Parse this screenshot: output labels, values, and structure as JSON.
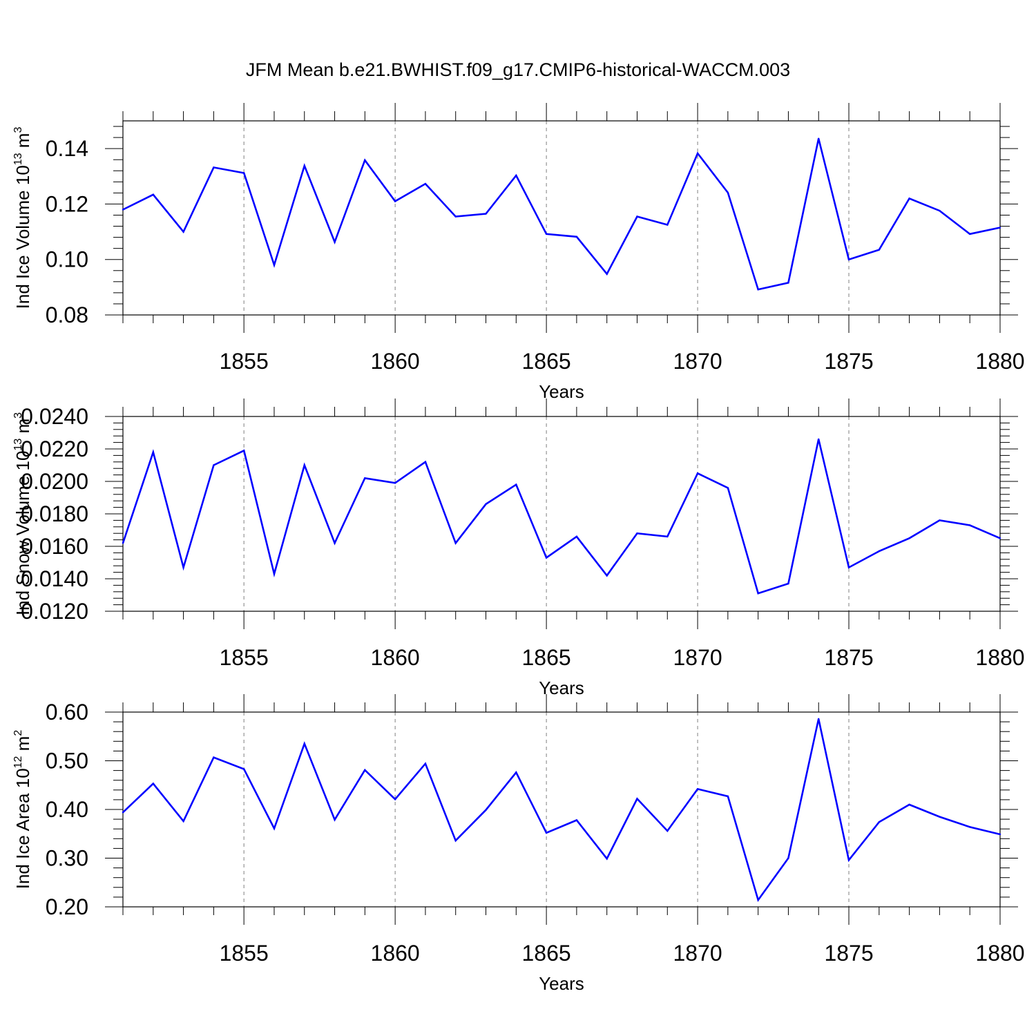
{
  "title": "JFM Mean b.e21.BWHIST.f09_g17.CMIP6-historical-WACCM.003",
  "line_color": "#0000ff",
  "chart_data": [
    {
      "type": "line",
      "ylabel": "Ind Ice Volume 10",
      "ylabel_exp": "13",
      "ylabel_unit": " m",
      "ylabel_unit_exp": "3",
      "xlabel": "Years",
      "xlim": [
        1851,
        1880
      ],
      "ylim": [
        0.08,
        0.15
      ],
      "yticks": [
        0.08,
        0.1,
        0.12,
        0.14
      ],
      "ytick_labels": [
        "0.08",
        "0.10",
        "0.12",
        "0.14"
      ],
      "xticks": [
        1855,
        1860,
        1865,
        1870,
        1875,
        1880
      ],
      "xtick_labels": [
        "1855",
        "1860",
        "1865",
        "1870",
        "1875",
        "1880"
      ],
      "x": [
        1851,
        1852,
        1853,
        1854,
        1855,
        1856,
        1857,
        1858,
        1859,
        1860,
        1861,
        1862,
        1863,
        1864,
        1865,
        1866,
        1867,
        1868,
        1869,
        1870,
        1871,
        1872,
        1873,
        1874,
        1875,
        1876,
        1877,
        1878,
        1879,
        1880
      ],
      "values": [
        0.118,
        0.1234,
        0.11,
        0.1332,
        0.1312,
        0.098,
        0.1338,
        0.1063,
        0.1358,
        0.121,
        0.1273,
        0.1155,
        0.1165,
        0.1303,
        0.1092,
        0.1082,
        0.0948,
        0.1155,
        0.1125,
        0.1383,
        0.1241,
        0.0892,
        0.0916,
        0.1436,
        0.1,
        0.1035,
        0.122,
        0.1176,
        0.1092,
        0.1115
      ]
    },
    {
      "type": "line",
      "ylabel": "Ind Snow Volume 10",
      "ylabel_exp": "13",
      "ylabel_unit": " m",
      "ylabel_unit_exp": "3",
      "xlabel": "Years",
      "xlim": [
        1851,
        1880
      ],
      "ylim": [
        0.012,
        0.024
      ],
      "yticks": [
        0.012,
        0.014,
        0.016,
        0.018,
        0.02,
        0.022,
        0.024
      ],
      "ytick_labels": [
        "0.0120",
        "0.0140",
        "0.0160",
        "0.0180",
        "0.0200",
        "0.0220",
        "0.0240"
      ],
      "xticks": [
        1855,
        1860,
        1865,
        1870,
        1875,
        1880
      ],
      "xtick_labels": [
        "1855",
        "1860",
        "1865",
        "1870",
        "1875",
        "1880"
      ],
      "x": [
        1851,
        1852,
        1853,
        1854,
        1855,
        1856,
        1857,
        1858,
        1859,
        1860,
        1861,
        1862,
        1863,
        1864,
        1865,
        1866,
        1867,
        1868,
        1869,
        1870,
        1871,
        1872,
        1873,
        1874,
        1875,
        1876,
        1877,
        1878,
        1879,
        1880
      ],
      "values": [
        0.0162,
        0.0218,
        0.0147,
        0.021,
        0.0219,
        0.0143,
        0.021,
        0.0162,
        0.0202,
        0.0199,
        0.0212,
        0.0162,
        0.0186,
        0.0198,
        0.0153,
        0.0166,
        0.0142,
        0.0168,
        0.0166,
        0.0205,
        0.0196,
        0.0131,
        0.0137,
        0.0226,
        0.0147,
        0.0157,
        0.0165,
        0.0176,
        0.0173,
        0.0165
      ]
    },
    {
      "type": "line",
      "ylabel": "Ind Ice Area 10",
      "ylabel_exp": "12",
      "ylabel_unit": " m",
      "ylabel_unit_exp": "2",
      "xlabel": "Years",
      "xlim": [
        1851,
        1880
      ],
      "ylim": [
        0.2,
        0.6
      ],
      "yticks": [
        0.2,
        0.3,
        0.4,
        0.5,
        0.6
      ],
      "ytick_labels": [
        "0.20",
        "0.30",
        "0.40",
        "0.50",
        "0.60"
      ],
      "xticks": [
        1855,
        1860,
        1865,
        1870,
        1875,
        1880
      ],
      "xtick_labels": [
        "1855",
        "1860",
        "1865",
        "1870",
        "1875",
        "1880"
      ],
      "x": [
        1851,
        1852,
        1853,
        1854,
        1855,
        1856,
        1857,
        1858,
        1859,
        1860,
        1861,
        1862,
        1863,
        1864,
        1865,
        1866,
        1867,
        1868,
        1869,
        1870,
        1871,
        1872,
        1873,
        1874,
        1875,
        1876,
        1877,
        1878,
        1879,
        1880
      ],
      "values": [
        0.394,
        0.453,
        0.376,
        0.507,
        0.483,
        0.361,
        0.535,
        0.379,
        0.481,
        0.421,
        0.494,
        0.336,
        0.399,
        0.476,
        0.352,
        0.378,
        0.299,
        0.422,
        0.356,
        0.442,
        0.427,
        0.214,
        0.3,
        0.586,
        0.296,
        0.374,
        0.41,
        0.385,
        0.364,
        0.349
      ]
    }
  ]
}
